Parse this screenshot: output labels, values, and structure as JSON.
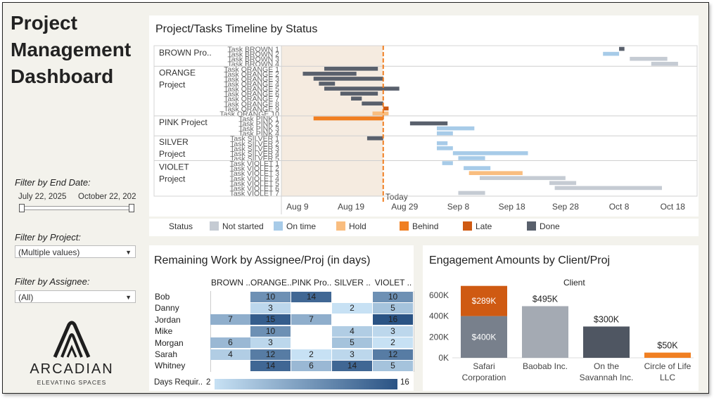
{
  "dashboard": {
    "title_lines": [
      "Project",
      "Management",
      "Dashboard"
    ]
  },
  "filters": {
    "end_date": {
      "label": "Filter by End Date:",
      "start": "July 22, 2025",
      "end": "October 22, 202"
    },
    "project": {
      "label": "Filter by Project:",
      "value": "(Multiple values)"
    },
    "assignee": {
      "label": "Filter by Assignee:",
      "value": "(All)"
    }
  },
  "logo": {
    "name": "ARCADIAN",
    "tagline": "ELEVATING SPACES"
  },
  "timeline": {
    "title": "Project/Tasks Timeline by Status",
    "today_label": "Today",
    "x_ticks": [
      "Aug 9",
      "Aug 19",
      "Aug 29",
      "Sep 8",
      "Sep 18",
      "Sep 28",
      "Oct 8",
      "Oct 18"
    ],
    "legend_title": "Status",
    "legend": [
      {
        "label": "Not started",
        "color": "#c5cbd3"
      },
      {
        "label": "On time",
        "color": "#a7cbe8"
      },
      {
        "label": "Hold",
        "color": "#f9bd7f"
      },
      {
        "label": "Behind",
        "color": "#f07f22"
      },
      {
        "label": "Late",
        "color": "#cf5a12"
      },
      {
        "label": "Done",
        "color": "#59606c"
      }
    ],
    "projects": [
      {
        "name": "BROWN Pro..",
        "tasks": [
          "Task BROWN 1",
          "Task BROWN 2",
          "Task BROWN 3",
          "Task BROWN 4"
        ]
      },
      {
        "name": "ORANGE Project",
        "tasks": [
          "Task ORANGE 1",
          "Task ORANGE 2",
          "Task ORANGE 3",
          "Task ORANGE 4",
          "Task ORANGE 5",
          "Task ORANGE 6",
          "Task ORANGE 7",
          "Task ORANGE 8",
          "Task ORANGE 9",
          "Task ORANGE 10"
        ]
      },
      {
        "name": "PINK Project",
        "tasks": [
          "Task PINK 1",
          "Task PINK 2",
          "Task PINK 3",
          "Task PINK 4"
        ]
      },
      {
        "name": "SILVER Project",
        "tasks": [
          "Task SILVER 1",
          "Task SILVER 2",
          "Task SILVER 3",
          "Task SILVER 4",
          "Task SILVER 5"
        ]
      },
      {
        "name": "VIOLET Project",
        "tasks": [
          "Task VIOLET 1",
          "Task VIOLET 2",
          "Task VIOLET 3",
          "Task VIOLET 4",
          "Task VIOLET 5",
          "Task VIOLET 6",
          "Task VIOLET 7"
        ]
      }
    ]
  },
  "chart_data": [
    {
      "type": "gantt",
      "x_start": "Aug 6",
      "today": "Aug 25",
      "task_date_ranges": [
        [
          "Oct 8",
          "Oct 9",
          "Done"
        ],
        [
          "Oct 5",
          "Oct 8",
          "On time"
        ],
        [
          "Oct 10",
          "Oct 17",
          "Not started"
        ],
        [
          "Oct 14",
          "Oct 19",
          "Not started"
        ],
        [
          "Aug 14",
          "Aug 24",
          "Done"
        ],
        [
          "Aug 10",
          "Aug 20",
          "Done"
        ],
        [
          "Aug 12",
          "Aug 25",
          "Done"
        ],
        [
          "Aug 13",
          "Aug 16",
          "Done"
        ],
        [
          "Aug 14",
          "Aug 28",
          "Done"
        ],
        [
          "Aug 17",
          "Aug 24",
          "Done"
        ],
        [
          "Aug 19",
          "Aug 21",
          "Done"
        ],
        [
          "Aug 21",
          "Aug 25",
          "Done"
        ],
        [
          "Aug 25",
          "Aug 26",
          "Late"
        ],
        [
          "Aug 23",
          "Aug 26",
          "Hold"
        ],
        [
          "Aug 12",
          "Aug 25",
          "Behind"
        ],
        [
          "Aug 30",
          "Sep 6",
          "Done"
        ],
        [
          "Sep 4",
          "Sep 11",
          "On time"
        ],
        [
          "Sep 4",
          "Sep 7",
          "On time"
        ],
        [
          "Aug 22",
          "Aug 25",
          "Done"
        ],
        [
          "Sep 4",
          "Sep 6",
          "On time"
        ],
        [
          "Sep 4",
          "Sep 7",
          "On time"
        ],
        [
          "Sep 7",
          "Sep 21",
          "On time"
        ],
        [
          "Sep 8",
          "Sep 13",
          "On time"
        ],
        [
          "Sep 5",
          "Sep 7",
          "On time"
        ],
        [
          "Sep 9",
          "Sep 14",
          "On time"
        ],
        [
          "Sep 10",
          "Sep 20",
          "Hold"
        ],
        [
          "Sep 12",
          "Sep 28",
          "Not started"
        ],
        [
          "Sep 25",
          "Sep 30",
          "Not started"
        ],
        [
          "Sep 26",
          "Oct 16",
          "Not started"
        ],
        [
          "Sep 8",
          "Sep 13",
          "Not started"
        ]
      ]
    },
    {
      "type": "heatmap",
      "title": "Remaining Work by Assignee/Proj (in days)",
      "columns": [
        "BROWN ..",
        "ORANGE..",
        "PINK Pro..",
        "SILVER ..",
        "VIOLET .."
      ],
      "rows": [
        "Bob",
        "Danny",
        "Jordan",
        "Mike",
        "Morgan",
        "Sarah",
        "Whitney"
      ],
      "values": [
        [
          null,
          10,
          14,
          null,
          10
        ],
        [
          null,
          3,
          null,
          2,
          5
        ],
        [
          7,
          15,
          7,
          null,
          16
        ],
        [
          null,
          10,
          null,
          4,
          3
        ],
        [
          6,
          3,
          null,
          5,
          2
        ],
        [
          4,
          12,
          2,
          3,
          12
        ],
        [
          null,
          14,
          6,
          14,
          5
        ]
      ],
      "legend_label": "Days Requir..",
      "legend_min": "2",
      "legend_max": "16",
      "color_min": "#c7e1f4",
      "color_max": "#2a5384"
    },
    {
      "type": "bar",
      "title": "Engagement Amounts by Client/Proj",
      "xlabel_top": "Client",
      "y_ticks": [
        "600K",
        "400K",
        "200K",
        "0K"
      ],
      "ylim": [
        0,
        660
      ],
      "categories": [
        [
          "Safari",
          "Corporation"
        ],
        [
          "Baobab Inc."
        ],
        [
          "On the",
          "Savannah Inc."
        ],
        [
          "Circle of Life",
          "LLC"
        ]
      ],
      "stacks": [
        [
          {
            "value": 400,
            "label": "$400K",
            "color": "#78808c"
          },
          {
            "value": 289,
            "label": "$289K",
            "color": "#cf5a12"
          }
        ],
        [
          {
            "value": 495,
            "label": "$495K",
            "color": "#a4aab3"
          }
        ],
        [
          {
            "value": 300,
            "label": "$300K",
            "color": "#4f5662"
          }
        ],
        [
          {
            "value": 50,
            "label": "$50K",
            "color": "#f07f22"
          }
        ]
      ]
    }
  ]
}
